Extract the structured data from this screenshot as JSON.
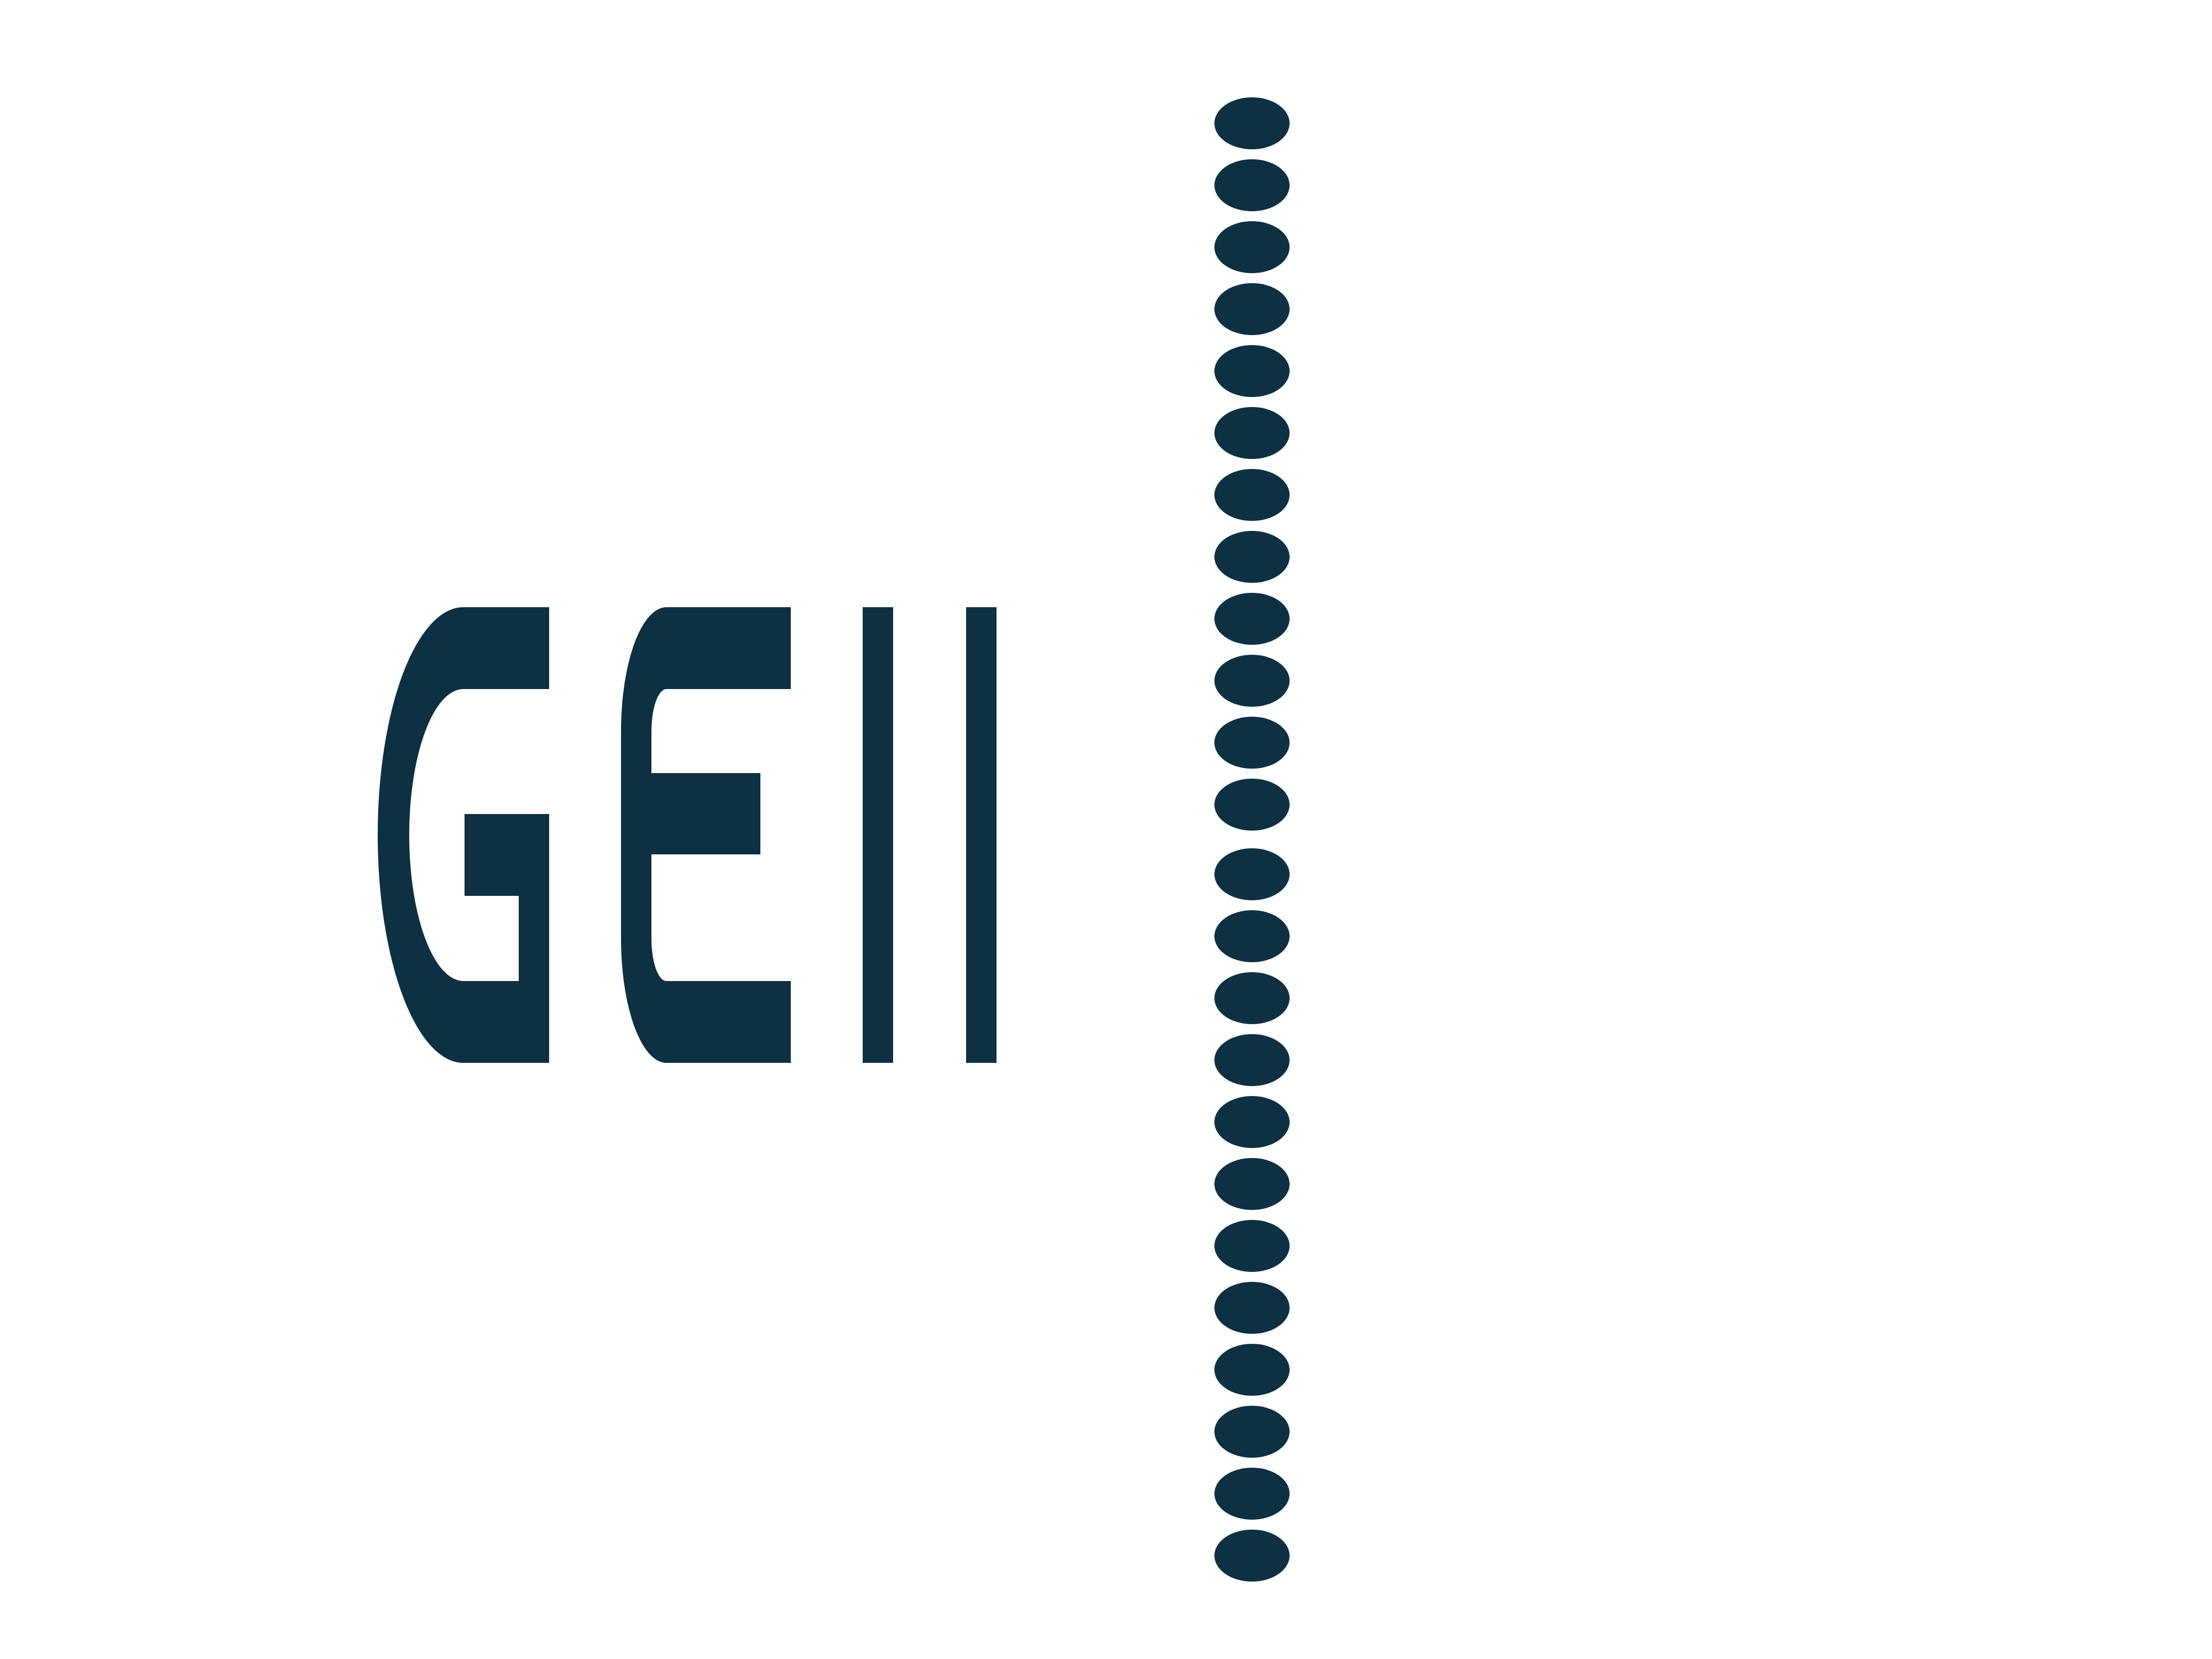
{
  "logo": {
    "text": "GEII",
    "color": "#0d3042"
  },
  "separator": {
    "name": "dotted-divider",
    "upper_dot_count": 12,
    "lower_dot_count": 12,
    "color": "#0d3042"
  }
}
